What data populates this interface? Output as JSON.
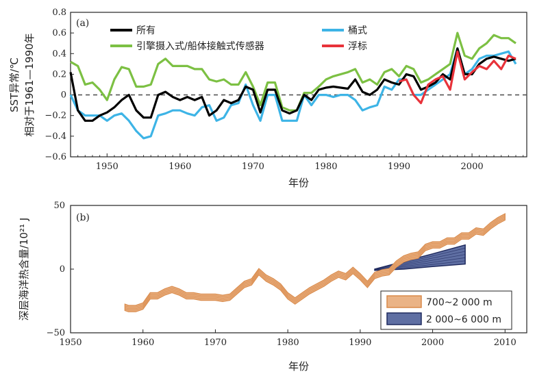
{
  "chart_data": [
    {
      "type": "line",
      "panel_label": "(a)",
      "ylabel": "SST异常/℃",
      "ylabel2": "相对于1961—1990年",
      "xlabel": "年份",
      "xlim": [
        1945,
        2007.5
      ],
      "ylim": [
        -0.6,
        0.8
      ],
      "xticks": [
        "1950",
        "1960",
        "1970",
        "1980",
        "1990",
        "2000"
      ],
      "yticks": [
        "0.8",
        "0.6",
        "0.4",
        "0.2",
        "0",
        "−0.2",
        "−0.4",
        "−0.6"
      ],
      "zero_line": "dashed",
      "legend": [
        "所有",
        "桶式",
        "引擎摄入式/船体接触式传感器",
        "浮标"
      ],
      "series": [
        {
          "name": "所有",
          "color": "#000000",
          "x": [
            1945,
            1946,
            1947,
            1948,
            1949,
            1950,
            1951,
            1952,
            1953,
            1954,
            1955,
            1956,
            1957,
            1958,
            1959,
            1960,
            1961,
            1962,
            1963,
            1964,
            1965,
            1966,
            1967,
            1968,
            1969,
            1970,
            1971,
            1972,
            1973,
            1974,
            1975,
            1976,
            1977,
            1978,
            1979,
            1980,
            1981,
            1982,
            1983,
            1984,
            1985,
            1986,
            1987,
            1988,
            1989,
            1990,
            1991,
            1992,
            1993,
            1994,
            1995,
            1996,
            1997,
            1998,
            1999,
            2000,
            2001,
            2002,
            2003,
            2004,
            2005,
            2006
          ],
          "y": [
            0.22,
            -0.15,
            -0.25,
            -0.25,
            -0.2,
            -0.17,
            -0.12,
            -0.05,
            0.0,
            -0.15,
            -0.22,
            -0.22,
            0.0,
            0.03,
            -0.02,
            -0.05,
            -0.02,
            -0.05,
            -0.02,
            -0.2,
            -0.15,
            -0.05,
            -0.08,
            -0.05,
            0.08,
            0.05,
            -0.17,
            0.05,
            0.05,
            -0.15,
            -0.18,
            -0.15,
            0.0,
            -0.05,
            0.05,
            0.07,
            0.08,
            0.07,
            0.06,
            0.15,
            0.03,
            0.0,
            0.05,
            0.15,
            0.12,
            0.1,
            0.2,
            0.18,
            0.05,
            0.08,
            0.12,
            0.2,
            0.15,
            0.45,
            0.2,
            0.2,
            0.3,
            0.35,
            0.37,
            0.35,
            0.33,
            0.35
          ]
        },
        {
          "name": "桶式",
          "color": "#3db4e6",
          "x": [
            1945,
            1946,
            1947,
            1948,
            1949,
            1950,
            1951,
            1952,
            1953,
            1954,
            1955,
            1956,
            1957,
            1958,
            1959,
            1960,
            1961,
            1962,
            1963,
            1964,
            1965,
            1966,
            1967,
            1968,
            1969,
            1970,
            1971,
            1972,
            1973,
            1974,
            1975,
            1976,
            1977,
            1978,
            1979,
            1980,
            1981,
            1982,
            1983,
            1984,
            1985,
            1986,
            1987,
            1988,
            1989,
            1990,
            1991,
            1992,
            1993,
            1994,
            1995,
            1996,
            1997,
            1998,
            1999,
            2000,
            2001,
            2002,
            2003,
            2004,
            2005,
            2006
          ],
          "y": [
            0.0,
            -0.15,
            -0.2,
            -0.2,
            -0.2,
            -0.25,
            -0.2,
            -0.18,
            -0.25,
            -0.35,
            -0.42,
            -0.4,
            -0.2,
            -0.18,
            -0.15,
            -0.15,
            -0.18,
            -0.2,
            -0.12,
            -0.1,
            -0.25,
            -0.22,
            -0.1,
            -0.08,
            0.1,
            -0.1,
            -0.25,
            0.0,
            0.0,
            -0.25,
            -0.25,
            -0.25,
            0.0,
            -0.1,
            0.0,
            0.0,
            -0.02,
            0.0,
            0.0,
            -0.05,
            -0.15,
            -0.12,
            -0.1,
            0.08,
            0.05,
            0.15,
            0.15,
            0.0,
            0.0,
            0.05,
            0.1,
            0.15,
            0.2,
            0.45,
            0.2,
            0.25,
            0.35,
            0.38,
            0.38,
            0.4,
            0.42,
            0.3
          ]
        },
        {
          "name": "引擎摄入式/船体接触式传感器",
          "color": "#7cc043",
          "x": [
            1945,
            1946,
            1947,
            1948,
            1949,
            1950,
            1951,
            1952,
            1953,
            1954,
            1955,
            1956,
            1957,
            1958,
            1959,
            1960,
            1961,
            1962,
            1963,
            1964,
            1965,
            1966,
            1967,
            1968,
            1969,
            1970,
            1971,
            1972,
            1973,
            1974,
            1975,
            1976,
            1977,
            1978,
            1979,
            1980,
            1981,
            1982,
            1983,
            1984,
            1985,
            1986,
            1987,
            1988,
            1989,
            1990,
            1991,
            1992,
            1993,
            1994,
            1995,
            1996,
            1997,
            1998,
            1999,
            2000,
            2001,
            2002,
            2003,
            2004,
            2005,
            2006
          ],
          "y": [
            0.32,
            0.28,
            0.1,
            0.12,
            0.05,
            -0.05,
            0.15,
            0.27,
            0.25,
            0.08,
            0.08,
            0.1,
            0.3,
            0.35,
            0.28,
            0.28,
            0.28,
            0.25,
            0.25,
            0.15,
            0.13,
            0.15,
            0.1,
            0.1,
            0.22,
            0.08,
            -0.1,
            0.12,
            0.12,
            -0.12,
            -0.15,
            -0.15,
            0.02,
            0.02,
            0.08,
            0.15,
            0.18,
            0.2,
            0.22,
            0.25,
            0.12,
            0.15,
            0.1,
            0.22,
            0.25,
            0.18,
            0.28,
            0.25,
            0.12,
            0.15,
            0.2,
            0.25,
            0.3,
            0.6,
            0.38,
            0.35,
            0.45,
            0.5,
            0.58,
            0.55,
            0.55,
            0.5
          ]
        },
        {
          "name": "浮标",
          "color": "#e8323a",
          "x": [
            1990,
            1991,
            1992,
            1993,
            1994,
            1995,
            1996,
            1997,
            1998,
            1999,
            2000,
            2001,
            2002,
            2003,
            2004,
            2005,
            2006
          ],
          "y": [
            0.13,
            0.15,
            0.0,
            -0.08,
            0.1,
            0.15,
            0.18,
            0.05,
            0.42,
            0.15,
            0.22,
            0.28,
            0.25,
            0.33,
            0.25,
            0.38,
            0.35
          ]
        }
      ]
    },
    {
      "type": "area",
      "panel_label": "(b)",
      "ylabel": "深层海洋热含量/10²¹ J",
      "xlabel": "年份",
      "xlim": [
        1950,
        2013
      ],
      "ylim": [
        -50,
        50
      ],
      "xticks": [
        "1950",
        "1960",
        "1970",
        "1980",
        "1990",
        "2000",
        "2010"
      ],
      "yticks": [
        "50",
        "0",
        "−50"
      ],
      "legend_position": "bottom-right",
      "series": [
        {
          "name": "700~2 000 m",
          "color": "#d98a4a",
          "fill": "#eab386",
          "x": [
            1957.5,
            1958,
            1959,
            1960,
            1961,
            1962,
            1963,
            1964,
            1965,
            1966,
            1967,
            1968,
            1969,
            1970,
            1971,
            1972,
            1973,
            1974,
            1975,
            1976,
            1977,
            1978,
            1979,
            1980,
            1981,
            1982,
            1983,
            1984,
            1985,
            1986,
            1987,
            1988,
            1989,
            1990,
            1991,
            1992,
            1993,
            1994,
            1995,
            1996,
            1997,
            1998,
            1999,
            2000,
            2001,
            2002,
            2003,
            2004,
            2005,
            2006,
            2007,
            2008,
            2009,
            2010
          ],
          "y": [
            -30,
            -31,
            -31,
            -29,
            -21,
            -21,
            -18,
            -16,
            -18,
            -21,
            -21,
            -22,
            -22,
            -22,
            -23,
            -22,
            -17,
            -12,
            -10,
            -2,
            -7,
            -10,
            -14,
            -21,
            -25,
            -21,
            -17,
            -14,
            -11,
            -7,
            -4,
            -6,
            -1,
            -6,
            -12,
            -5,
            -3,
            -2,
            4,
            8,
            10,
            11,
            17,
            19,
            19,
            22,
            22,
            26,
            26,
            30,
            29,
            34,
            38,
            41
          ],
          "band": 2.5
        },
        {
          "name": "2 000~6 000 m",
          "color": "#1f2a5e",
          "fill": "#5f6fa3",
          "x": [
            1992,
            1996,
            2000,
            2004.5
          ],
          "lower": [
            -1,
            0,
            2,
            4
          ],
          "upper": [
            0,
            6,
            12,
            19
          ]
        }
      ]
    }
  ]
}
